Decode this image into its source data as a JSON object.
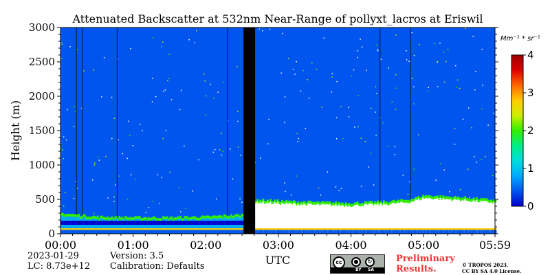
{
  "chart_data": {
    "type": "heatmap",
    "title": "Attenuated Backscatter at 532nm Near-Range of pollyxt_lacros at Eriswil",
    "ylabel": "Height (m)",
    "xlabel": "UTC",
    "x_tick_labels": [
      "00:00",
      "01:00",
      "02:00",
      "03:00",
      "04:00",
      "05:00",
      "05:59"
    ],
    "x_tick_hours": [
      0,
      1,
      2,
      3,
      4,
      5,
      5.983
    ],
    "xlim_hours": [
      0,
      5.983
    ],
    "y_tick_labels": [
      "0",
      "500",
      "1000",
      "1500",
      "2000",
      "2500",
      "3000"
    ],
    "y_ticks": [
      0,
      500,
      1000,
      1500,
      2000,
      2500,
      3000
    ],
    "ylim": [
      0,
      3000
    ],
    "colorbar": {
      "unit": "Mm⁻¹ * sr⁻¹",
      "range": [
        0,
        4
      ],
      "tick_labels": [
        "0",
        "1",
        "2",
        "3",
        "4"
      ],
      "ticks": [
        0,
        1,
        2,
        3,
        4
      ],
      "colors": [
        "#0000cc",
        "#0055ee",
        "#00aaff",
        "#00dddd",
        "#00ee88",
        "#33ee00",
        "#ccee00",
        "#ffcc00",
        "#ff6600",
        "#dd0000",
        "#990000"
      ]
    },
    "background_value": 0.3,
    "no_data_gaps_hours": [
      [
        2.52,
        2.68
      ]
    ],
    "vertical_artifacts_hours": [
      0.22,
      0.3,
      0.78,
      2.3,
      4.4,
      4.82
    ],
    "boundary_layer": [
      {
        "t": 0.0,
        "top": 300
      },
      {
        "t": 0.5,
        "top": 250
      },
      {
        "t": 1.0,
        "top": 240
      },
      {
        "t": 1.5,
        "top": 240
      },
      {
        "t": 2.0,
        "top": 250
      },
      {
        "t": 2.5,
        "top": 280
      },
      {
        "t": 2.7,
        "top": 500
      },
      {
        "t": 3.0,
        "top": 480
      },
      {
        "t": 3.5,
        "top": 460
      },
      {
        "t": 4.0,
        "top": 450
      },
      {
        "t": 4.5,
        "top": 470
      },
      {
        "t": 4.8,
        "top": 500
      },
      {
        "t": 5.0,
        "top": 560
      },
      {
        "t": 5.5,
        "top": 530
      },
      {
        "t": 5.983,
        "top": 490
      }
    ]
  },
  "meta": {
    "date": "2023-01-29",
    "version": "Version: 3.5",
    "lc": "LC: 8.73e+12",
    "calibration": "Calibration: Defaults"
  },
  "badge": {
    "cc": "cc",
    "by": "BY",
    "sa": "SA"
  },
  "preliminary": [
    "Preliminary",
    "Results."
  ],
  "license": [
    "© TROPOS 2023.",
    "CC BY SA 4.0 License."
  ]
}
